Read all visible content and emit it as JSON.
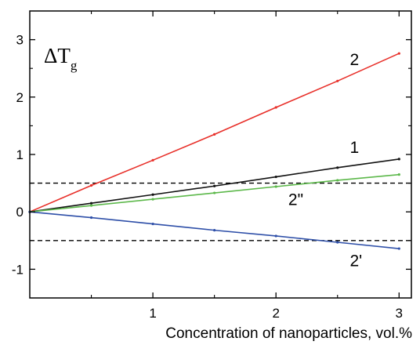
{
  "chart_data": {
    "type": "line",
    "xlabel": "Concentration of nanoparticles, vol.%",
    "ylabel": "ΔT",
    "ylabel_subscript": "g",
    "xlim": [
      0,
      3.1
    ],
    "ylim": [
      -1.5,
      3.5
    ],
    "xticks": [
      1,
      2,
      3
    ],
    "xtick_labels": [
      "1",
      "2",
      "3"
    ],
    "yticks": [
      -1,
      0,
      1,
      2,
      3
    ],
    "ytick_labels": [
      "-1",
      "0",
      "1",
      "2",
      "3"
    ],
    "grid": false,
    "series": [
      {
        "name": "2",
        "color": "#e8302a",
        "x": [
          0,
          0.5,
          1,
          1.5,
          2,
          2.5,
          3
        ],
        "values": [
          0,
          0.46,
          0.9,
          1.35,
          1.82,
          2.28,
          2.76
        ]
      },
      {
        "name": "1",
        "color": "#111111",
        "x": [
          0,
          0.5,
          1,
          1.5,
          2,
          2.5,
          3
        ],
        "values": [
          0,
          0.15,
          0.3,
          0.45,
          0.61,
          0.77,
          0.92
        ]
      },
      {
        "name": "2\"",
        "color": "#5cb84a",
        "x": [
          0,
          0.5,
          1,
          1.5,
          2,
          2.5,
          3
        ],
        "values": [
          0,
          0.11,
          0.22,
          0.33,
          0.44,
          0.55,
          0.65
        ]
      },
      {
        "name": "2'",
        "color": "#2e4fa8",
        "x": [
          0,
          0.5,
          1,
          1.5,
          2,
          2.5,
          3
        ],
        "values": [
          0,
          -0.1,
          -0.21,
          -0.32,
          -0.42,
          -0.53,
          -0.64
        ]
      }
    ],
    "reference_lines": [
      {
        "y": 0.5,
        "style": "dashed",
        "color": "#000000"
      },
      {
        "y": -0.5,
        "style": "dashed",
        "color": "#000000"
      }
    ],
    "annotations": [
      {
        "text": "2",
        "series": "2",
        "x": 2.6,
        "y": 2.56
      },
      {
        "text": "1",
        "series": "1",
        "x": 2.6,
        "y": 1.03
      },
      {
        "text": "2\"",
        "series": "2\"",
        "x": 2.1,
        "y": 0.12
      },
      {
        "text": "2'",
        "series": "2'",
        "x": 2.6,
        "y": -0.95
      }
    ]
  }
}
